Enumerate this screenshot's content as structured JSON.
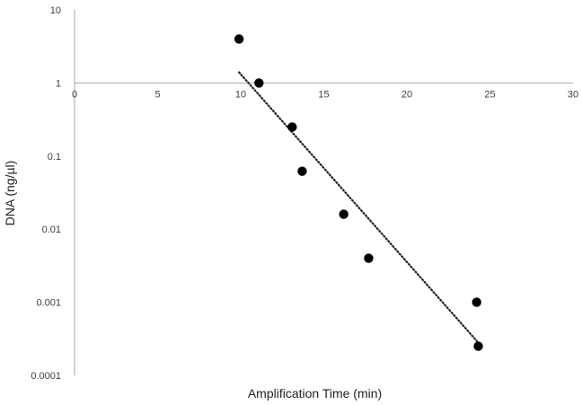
{
  "chart_data": {
    "type": "scatter",
    "title": "",
    "xlabel": "Amplification Time (min)",
    "ylabel": "DNA (ng/µl)",
    "x_ticks": [
      0,
      5,
      10,
      15,
      20,
      25,
      30
    ],
    "y_ticks": [
      10,
      1,
      0.1,
      0.01,
      0.001,
      0.0001
    ],
    "y_tick_labels": [
      "10",
      "1",
      "0.1",
      "0.01",
      "0.001",
      "0.0001"
    ],
    "xlim": [
      0,
      30
    ],
    "ylim": [
      0.0001,
      10
    ],
    "y_scale": "log",
    "x_axis_crosses_at_y": 1,
    "grid": false,
    "legend": "none",
    "series": [
      {
        "points": [
          {
            "x": 9.9,
            "y": 4
          },
          {
            "x": 11.1,
            "y": 1
          },
          {
            "x": 13.1,
            "y": 0.25
          },
          {
            "x": 13.7,
            "y": 0.062
          },
          {
            "x": 16.2,
            "y": 0.016
          },
          {
            "x": 17.7,
            "y": 0.004
          },
          {
            "x": 24.2,
            "y": 0.001
          },
          {
            "x": 24.3,
            "y": 0.00025
          }
        ],
        "color": "#000000"
      }
    ],
    "trendline": {
      "type": "exponential",
      "style": "dotted",
      "color": "#222222",
      "x_range": [
        9.9,
        24.3
      ],
      "y_start": 1.4,
      "y_end": 0.00028
    }
  }
}
